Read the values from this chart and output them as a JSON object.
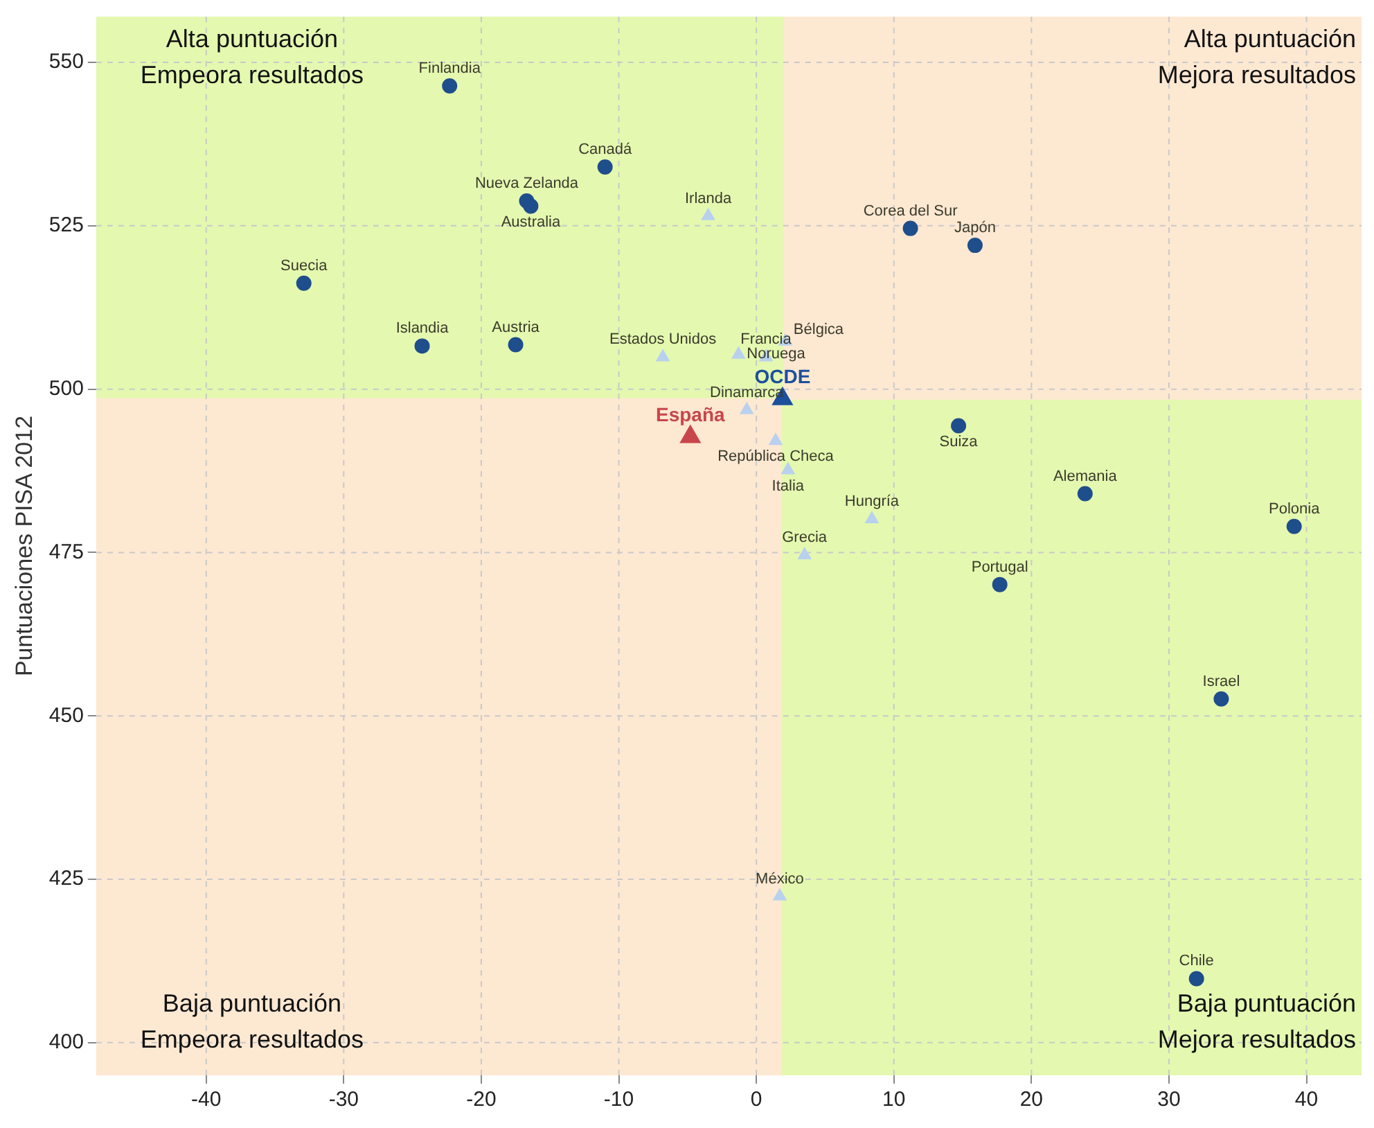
{
  "chart_data": {
    "type": "scatter",
    "ylabel": "Puntuaciones PISA 2012",
    "xlim": [
      -48,
      44
    ],
    "xticks": [
      -40,
      -30,
      -20,
      -10,
      0,
      10,
      20,
      30,
      40
    ],
    "ylim": [
      395,
      557
    ],
    "yticks": [
      400,
      425,
      450,
      475,
      500,
      525,
      550
    ],
    "grid": true,
    "legend": false,
    "ref_lines": [
      {
        "axis": "x",
        "value": 1.9,
        "color": "#e4f8b0"
      },
      {
        "axis": "y",
        "value": 498.5,
        "color": "#fde8d2"
      }
    ],
    "series": [
      {
        "color": "#1f4e8c",
        "marker": "circle",
        "x": [
          -22.3,
          -11.0,
          -16.7,
          -16.4,
          -32.9,
          -24.3,
          -17.5,
          11.2,
          15.9,
          14.7,
          23.9,
          39.1,
          17.7,
          33.8,
          32.0
        ],
        "values": [
          546.4,
          534,
          528.8,
          528.0,
          516.2,
          506.6,
          506.8,
          524.6,
          522,
          494.4,
          484,
          479,
          470.1,
          452.6,
          409.8
        ]
      },
      {
        "color": "#b9d1ee",
        "marker": "triangle",
        "x": [
          -3.5,
          -6.8,
          -1.3,
          0.7,
          2.1,
          -0.7,
          1.4,
          2.3,
          8.4,
          3.5,
          1.7
        ],
        "values": [
          526.5,
          504.9,
          505.3,
          504.9,
          507.3,
          496.8,
          492.1,
          487.6,
          480.1,
          474.6,
          422.4
        ]
      },
      {
        "name": "España",
        "color": "#c8464b",
        "marker": "triangle",
        "x": [
          -4.8
        ],
        "values": [
          492.7
        ]
      },
      {
        "name": "OCDE",
        "color": "#1c4f9c",
        "marker": "triangle",
        "x": [
          1.9
        ],
        "values": [
          498.5
        ]
      }
    ],
    "annotations": [
      "Alta puntuación\nEmpeora resultados",
      "Alta puntuación\nMejora resultados",
      "Baja puntuación\nEmpeora resultados",
      "Baja puntuación\nMejora resultados",
      {
        "text": "Finlandia",
        "x": -22.3,
        "y": 546.4
      },
      {
        "text": "Canadá",
        "x": -11.0,
        "y": 534
      },
      {
        "text": "Nueva Zelanda",
        "x": -16.7,
        "y": 528.8
      },
      {
        "text": "Australia",
        "x": -16.4,
        "y": 528.0
      },
      {
        "text": "Suecia",
        "x": -32.9,
        "y": 516.2
      },
      {
        "text": "Islandia",
        "x": -24.3,
        "y": 506.6
      },
      {
        "text": "Austria",
        "x": -17.5,
        "y": 506.8
      },
      {
        "text": "Corea del Sur",
        "x": 11.2,
        "y": 524.6
      },
      {
        "text": "Japón",
        "x": 15.9,
        "y": 522
      },
      {
        "text": "Suiza",
        "x": 14.7,
        "y": 494.4
      },
      {
        "text": "Alemania",
        "x": 23.9,
        "y": 484
      },
      {
        "text": "Polonia",
        "x": 39.1,
        "y": 479
      },
      {
        "text": "Portugal",
        "x": 17.7,
        "y": 470.1
      },
      {
        "text": "Israel",
        "x": 33.8,
        "y": 452.6
      },
      {
        "text": "Chile",
        "x": 32.0,
        "y": 409.8
      },
      {
        "text": "Irlanda",
        "x": -3.5,
        "y": 526.5
      },
      {
        "text": "Estados Unidos",
        "x": -6.8,
        "y": 504.9
      },
      {
        "text": "Noruega",
        "x": -1.3,
        "y": 505.3
      },
      {
        "text": "Francia",
        "x": 0.7,
        "y": 504.9
      },
      {
        "text": "Bélgica",
        "x": 2.1,
        "y": 507.3
      },
      {
        "text": "Dinamarca",
        "x": -0.7,
        "y": 496.8
      },
      {
        "text": "República Checa",
        "x": 1.4,
        "y": 492.1
      },
      {
        "text": "Italia",
        "x": 2.3,
        "y": 487.6
      },
      {
        "text": "Hungría",
        "x": 8.4,
        "y": 480.1
      },
      {
        "text": "Grecia",
        "x": 3.5,
        "y": 474.6
      },
      {
        "text": "México",
        "x": 1.7,
        "y": 422.4
      }
    ]
  }
}
